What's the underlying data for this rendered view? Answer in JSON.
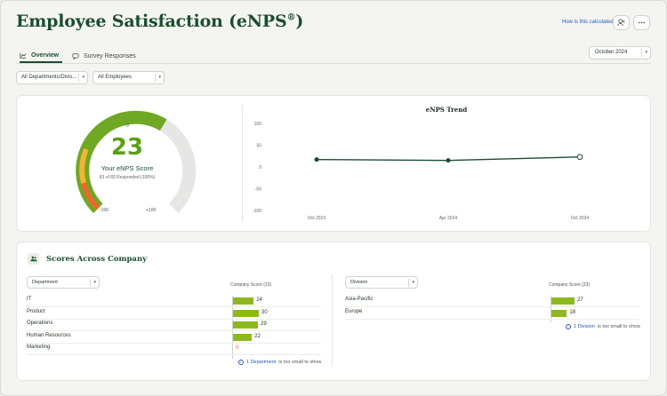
{
  "header": {
    "title": "Employee Satisfaction (eNPS",
    "title_mark": "®",
    "title_close": ")",
    "how_link": "How is this calculated?"
  },
  "tabs": [
    {
      "label": "Overview",
      "active": true,
      "icon": "chart-icon"
    },
    {
      "label": "Survey Responses",
      "active": false,
      "icon": "chat-icon"
    }
  ],
  "period": {
    "selected": "October 2024"
  },
  "filters": {
    "departments": "All Departments/Divis...",
    "employees": "All Employees"
  },
  "gauge": {
    "score": "23",
    "label": "Your eNPS Score",
    "responded": "83 of 83 Responded (100%)",
    "min_label": "-100",
    "mid_label": "0",
    "max_label": "+100",
    "value": 23
  },
  "chart_data": {
    "type": "line",
    "title": "eNPS Trend",
    "x": [
      "Oct 2023",
      "Apr 2024",
      "Oct 2024"
    ],
    "series": [
      {
        "values": [
          17,
          15,
          23
        ]
      }
    ],
    "ylim": [
      -100,
      100
    ],
    "yticks": [
      "100",
      "50",
      "0",
      "-50",
      "-100"
    ],
    "grid": false
  },
  "scores": {
    "title": "Scores Across Company",
    "left": {
      "dropdown": "Department",
      "col_header": "Company Score (23)",
      "rows": [
        {
          "label": "IT",
          "value": 24
        },
        {
          "label": "Product",
          "value": 30
        },
        {
          "label": "Operations",
          "value": 29
        },
        {
          "label": "Human Resources",
          "value": 22
        },
        {
          "label": "Marketing",
          "value": 0
        }
      ],
      "note_link": "1 Department",
      "note_text": "is too small to show"
    },
    "right": {
      "dropdown": "Division",
      "col_header": "Company Score (23)",
      "rows": [
        {
          "label": "Asia-Pacific",
          "value": 27
        },
        {
          "label": "Europe",
          "value": 18
        }
      ],
      "note_link": "1 Division",
      "note_text": "is too small to show"
    }
  },
  "colors": {
    "brand": "#1b4d30",
    "accent": "#8db81e",
    "link": "#2659b8",
    "negative": "#e0733a"
  }
}
